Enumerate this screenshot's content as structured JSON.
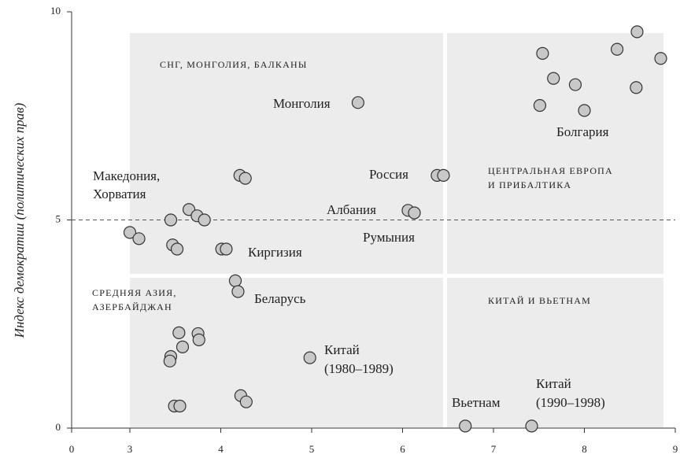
{
  "chart_data": {
    "type": "scatter",
    "y_label": "Индекс демократии (политических прав)",
    "x": [
      3.0,
      3.1,
      3.45,
      3.47,
      3.52,
      3.65,
      3.74,
      3.82,
      4.01,
      4.06,
      4.21,
      4.27,
      5.51,
      6.38,
      6.45,
      6.06,
      6.13,
      4.16,
      4.19,
      3.54,
      3.58,
      3.45,
      3.44,
      3.75,
      3.76,
      3.49,
      3.55,
      4.22,
      4.28,
      4.98,
      6.69,
      7.42,
      7.54,
      7.66,
      7.9,
      7.51,
      8.0,
      8.36,
      8.58,
      8.57,
      8.84
    ],
    "values": [
      4.7,
      4.55,
      5.0,
      4.4,
      4.3,
      5.25,
      5.1,
      5.0,
      4.3,
      4.3,
      6.07,
      6.0,
      7.82,
      6.07,
      6.07,
      5.23,
      5.17,
      3.54,
      3.28,
      2.29,
      1.95,
      1.72,
      1.61,
      2.27,
      2.12,
      0.53,
      0.53,
      0.78,
      0.63,
      1.69,
      0.05,
      0.05,
      9.0,
      8.4,
      8.25,
      7.75,
      7.63,
      9.1,
      9.52,
      8.18,
      8.88
    ],
    "color": "#c8c8c8",
    "xlim": [
      0,
      9
    ],
    "x_axis_break": [
      0,
      3
    ],
    "xticks": [
      0,
      3,
      4,
      5,
      6,
      7,
      8,
      9
    ],
    "ylim": [
      0,
      10
    ],
    "yticks": [
      0,
      5,
      10
    ],
    "reference_line": 5,
    "regions": [
      [
        "СНГ, МОНГОЛИЯ, БАЛКАНЫ"
      ],
      [
        "ЦЕНТРАЛЬНАЯ ЕВРОПА",
        "И ПРИБАЛТИКА"
      ],
      [
        "СРЕДНЯЯ АЗИЯ,",
        "АЗЕРБАЙДЖАН"
      ],
      [
        "КИТАЙ И ВЬЕТНАМ"
      ]
    ],
    "annotations": [
      [
        "Монголия"
      ],
      [
        "Болгария"
      ],
      [
        "Россия"
      ],
      [
        "Македония,",
        "Хорватия"
      ],
      [
        "Албания"
      ],
      [
        "Румыния"
      ],
      [
        "Киргизия"
      ],
      [
        "Беларусь"
      ],
      [
        "Китай",
        "(1980–1989)"
      ],
      [
        "Вьетнам"
      ],
      [
        "Китай",
        "(1990–1998)"
      ]
    ]
  }
}
